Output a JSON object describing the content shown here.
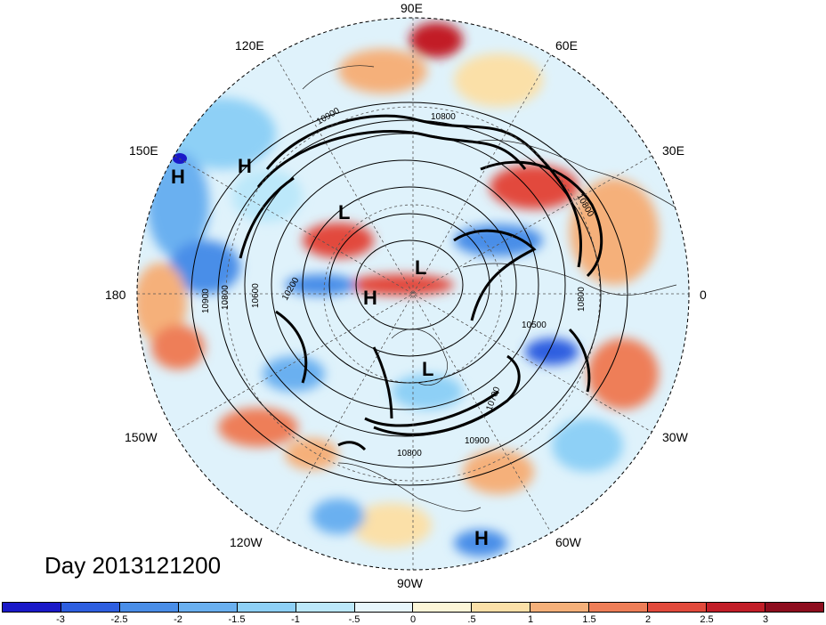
{
  "title": "Day 2013121200",
  "longitude_labels": [
    "90E",
    "60E",
    "30E",
    "0",
    "30W",
    "60W",
    "90W",
    "120W",
    "150W",
    "180",
    "150E",
    "120E"
  ],
  "pressure_systems": [
    "H",
    "H",
    "L",
    "L",
    "H",
    "L",
    "H"
  ],
  "contour_labels": [
    "10900",
    "10800",
    "10800",
    "10900",
    "10800",
    "10600",
    "10200",
    "10500",
    "10800",
    "10700",
    "10800",
    "10900"
  ],
  "colorbar": {
    "ticks": [
      "-3",
      "-2.5",
      "-2",
      "-1.5",
      "-1",
      "-.5",
      "0",
      ".5",
      "1",
      "1.5",
      "2",
      "2.5",
      "3"
    ],
    "colors": [
      "#1a19c8",
      "#2e5fe0",
      "#4a8ee8",
      "#6ab0f0",
      "#8ed0f6",
      "#bce8fa",
      "#e8f6fc",
      "#fdf6d8",
      "#fbe0a8",
      "#f5b07a",
      "#ee7e58",
      "#e24a3c",
      "#c21e28",
      "#8e0d1e"
    ]
  },
  "chart_data": {
    "type": "map",
    "projection": "north polar stereographic",
    "fill_field_levels": [
      -3,
      -2.5,
      -2,
      -1.5,
      -1,
      -0.5,
      0,
      0.5,
      1,
      1.5,
      2,
      2.5,
      3
    ],
    "contour_field_levels": [
      10200,
      10500,
      10600,
      10700,
      10800,
      10900
    ]
  }
}
